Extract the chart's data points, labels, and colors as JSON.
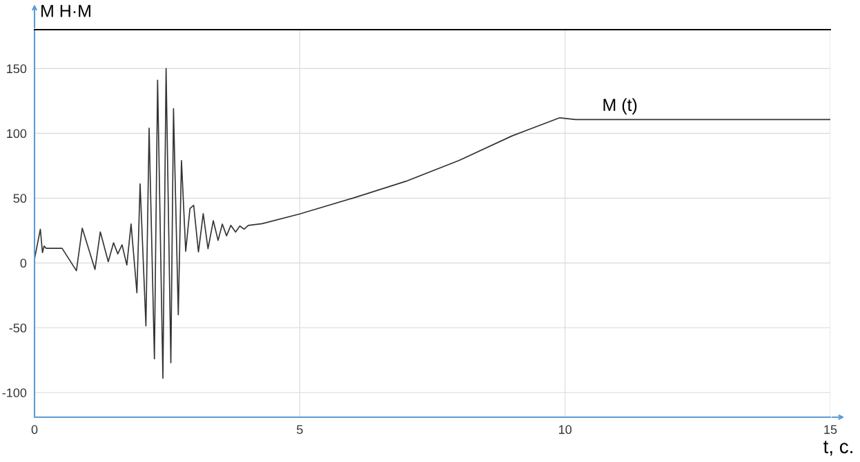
{
  "chart_data": {
    "type": "line",
    "xlabel": "t, с.",
    "ylabel": "M Н·М",
    "xlim": [
      0,
      15
    ],
    "ylim": [
      -119,
      180
    ],
    "xticks": [
      0,
      5,
      10,
      15
    ],
    "yticks": [
      -100,
      -50,
      0,
      50,
      100,
      150
    ],
    "grid": true,
    "legend": false,
    "series": [
      {
        "name": "M (t)",
        "color": "#333333",
        "x": [
          0,
          0.11,
          0.15,
          0.18,
          0.22,
          0.52,
          0.79,
          0.9,
          1.14,
          1.24,
          1.39,
          1.49,
          1.57,
          1.65,
          1.74,
          1.82,
          1.93,
          1.99,
          2.1,
          2.16,
          2.26,
          2.32,
          2.42,
          2.48,
          2.57,
          2.62,
          2.71,
          2.77,
          2.85,
          2.93,
          3.0,
          3.09,
          3.18,
          3.27,
          3.37,
          3.46,
          3.54,
          3.62,
          3.7,
          3.79,
          3.87,
          3.95,
          4.03,
          4.29,
          5,
          6,
          7,
          8,
          9,
          9.9,
          10.2,
          12,
          15
        ],
        "values": [
          3,
          26,
          8,
          13,
          11.3,
          11.3,
          -6,
          26.8,
          -5,
          24,
          1,
          15.6,
          7,
          14,
          -1.6,
          30,
          -23,
          61,
          -48.6,
          104,
          -74,
          141,
          -89,
          150,
          -77,
          119,
          -40,
          79,
          9,
          42,
          44.5,
          8.5,
          38,
          11,
          32.6,
          17.4,
          30,
          21,
          29,
          23.8,
          28.5,
          26,
          29,
          30.3,
          37.8,
          50,
          63,
          79,
          98,
          112,
          110.6,
          110.6,
          110.6
        ]
      }
    ]
  }
}
